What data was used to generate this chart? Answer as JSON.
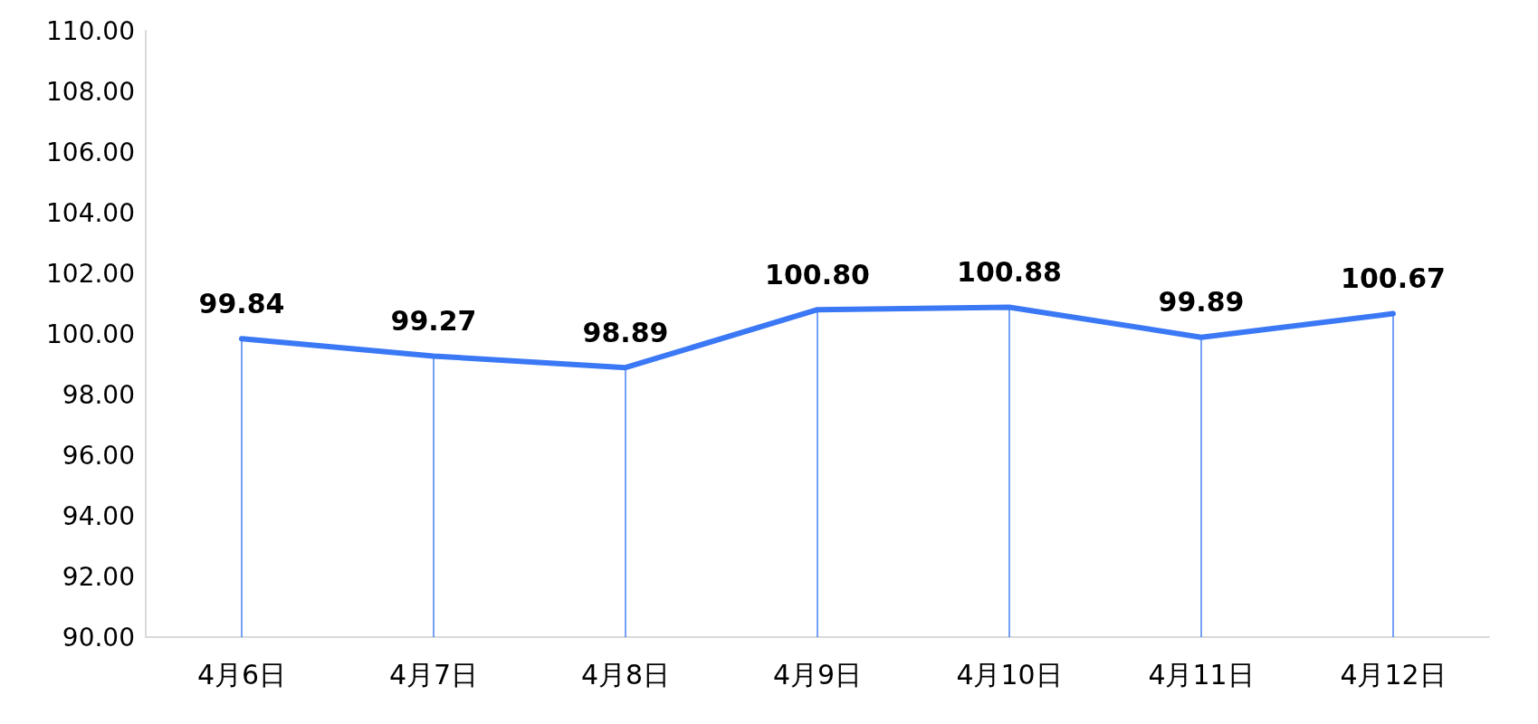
{
  "chart_data": {
    "type": "line",
    "categories": [
      "4月6日",
      "4月7日",
      "4月8日",
      "4月9日",
      "4月10日",
      "4月11日",
      "4月12日"
    ],
    "series": [
      {
        "color": "#3b78f5",
        "values": [
          99.84,
          99.27,
          98.89,
          100.8,
          100.88,
          99.89,
          100.67
        ],
        "value_labels": [
          "99.84",
          "99.27",
          "98.89",
          "100.80",
          "100.88",
          "99.89",
          "100.67"
        ]
      }
    ],
    "ylim": [
      90,
      110
    ],
    "yticks": [
      {
        "value": 90,
        "label": "90.00"
      },
      {
        "value": 92,
        "label": "92.00"
      },
      {
        "value": 94,
        "label": "94.00"
      },
      {
        "value": 96,
        "label": "96.00"
      },
      {
        "value": 98,
        "label": "98.00"
      },
      {
        "value": 100,
        "label": "100.00"
      },
      {
        "value": 102,
        "label": "102.00"
      },
      {
        "value": 104,
        "label": "104.00"
      },
      {
        "value": 106,
        "label": "106.00"
      },
      {
        "value": 108,
        "label": "108.00"
      },
      {
        "value": 110,
        "label": "110.00"
      }
    ],
    "grid": false,
    "marker": "none",
    "line_style": "solid"
  }
}
